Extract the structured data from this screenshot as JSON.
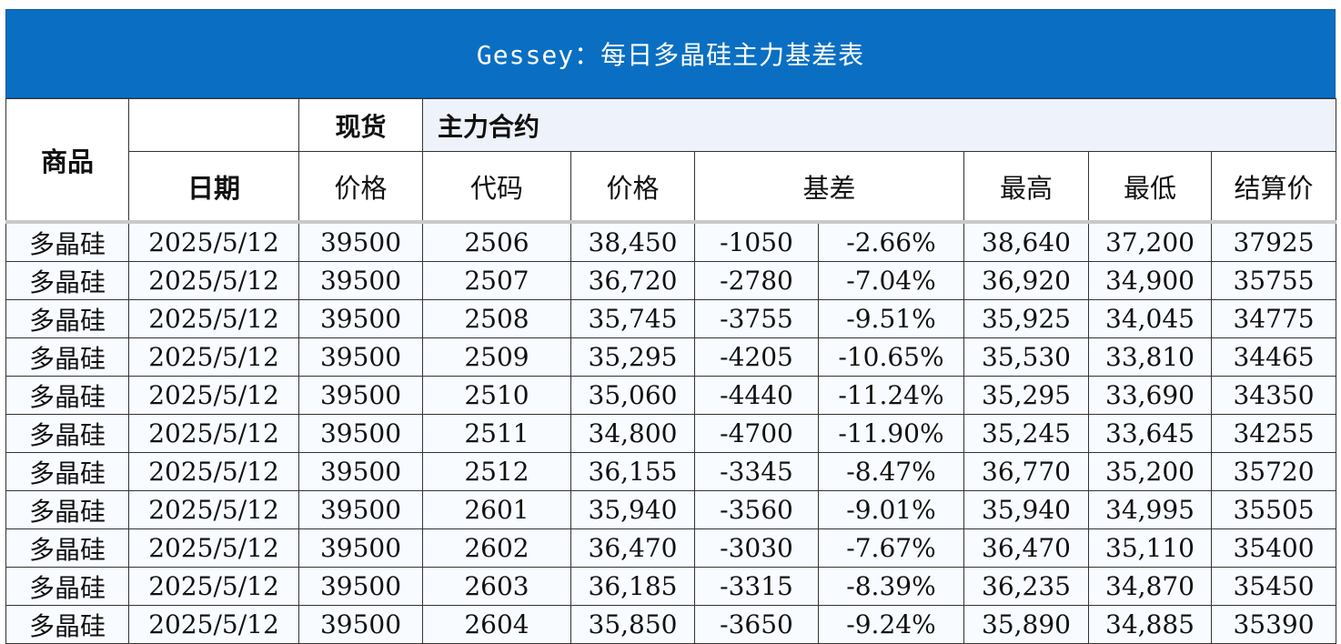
{
  "title": "Gessey：每日多晶硅主力基差表",
  "header": {
    "product": "商品",
    "spot": "现货",
    "contract": "主力合约",
    "date": "日期",
    "spot_price": "价格",
    "code": "代码",
    "price": "价格",
    "basis": "基差",
    "high": "最高",
    "low": "最低",
    "settle": "结算价"
  },
  "rows": [
    {
      "product": "多晶硅",
      "date": "2025/5/12",
      "spot": "39500",
      "code": "2506",
      "price": "38,450",
      "basis": "-1050",
      "basis_pct": "-2.66%",
      "high": "38,640",
      "low": "37,200",
      "settle": "37925"
    },
    {
      "product": "多晶硅",
      "date": "2025/5/12",
      "spot": "39500",
      "code": "2507",
      "price": "36,720",
      "basis": "-2780",
      "basis_pct": "-7.04%",
      "high": "36,920",
      "low": "34,900",
      "settle": "35755"
    },
    {
      "product": "多晶硅",
      "date": "2025/5/12",
      "spot": "39500",
      "code": "2508",
      "price": "35,745",
      "basis": "-3755",
      "basis_pct": "-9.51%",
      "high": "35,925",
      "low": "34,045",
      "settle": "34775"
    },
    {
      "product": "多晶硅",
      "date": "2025/5/12",
      "spot": "39500",
      "code": "2509",
      "price": "35,295",
      "basis": "-4205",
      "basis_pct": "-10.65%",
      "high": "35,530",
      "low": "33,810",
      "settle": "34465"
    },
    {
      "product": "多晶硅",
      "date": "2025/5/12",
      "spot": "39500",
      "code": "2510",
      "price": "35,060",
      "basis": "-4440",
      "basis_pct": "-11.24%",
      "high": "35,295",
      "low": "33,690",
      "settle": "34350"
    },
    {
      "product": "多晶硅",
      "date": "2025/5/12",
      "spot": "39500",
      "code": "2511",
      "price": "34,800",
      "basis": "-4700",
      "basis_pct": "-11.90%",
      "high": "35,245",
      "low": "33,645",
      "settle": "34255"
    },
    {
      "product": "多晶硅",
      "date": "2025/5/12",
      "spot": "39500",
      "code": "2512",
      "price": "36,155",
      "basis": "-3345",
      "basis_pct": "-8.47%",
      "high": "36,770",
      "low": "35,200",
      "settle": "35720"
    },
    {
      "product": "多晶硅",
      "date": "2025/5/12",
      "spot": "39500",
      "code": "2601",
      "price": "35,940",
      "basis": "-3560",
      "basis_pct": "-9.01%",
      "high": "35,940",
      "low": "34,995",
      "settle": "35505"
    },
    {
      "product": "多晶硅",
      "date": "2025/5/12",
      "spot": "39500",
      "code": "2602",
      "price": "36,470",
      "basis": "-3030",
      "basis_pct": "-7.67%",
      "high": "36,470",
      "low": "35,110",
      "settle": "35400"
    },
    {
      "product": "多晶硅",
      "date": "2025/5/12",
      "spot": "39500",
      "code": "2603",
      "price": "36,185",
      "basis": "-3315",
      "basis_pct": "-8.39%",
      "high": "36,235",
      "low": "34,870",
      "settle": "35450"
    },
    {
      "product": "多晶硅",
      "date": "2025/5/12",
      "spot": "39500",
      "code": "2604",
      "price": "35,850",
      "basis": "-3650",
      "basis_pct": "-9.24%",
      "high": "35,890",
      "low": "34,885",
      "settle": "35390"
    }
  ],
  "colors": {
    "banner": "#0a6fc2",
    "product_date_text": "#1f3e9a",
    "basis_text": "#1aa34a",
    "contract_header_bg": "#eef2fb"
  }
}
